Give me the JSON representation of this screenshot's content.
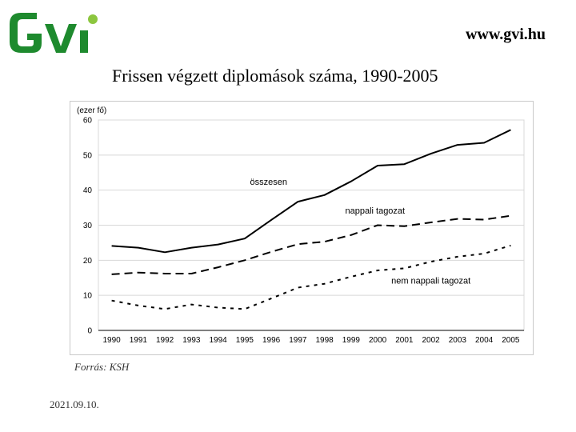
{
  "header": {
    "site_url": "www.gvi.hu",
    "logo_text": "GVI",
    "logo_colors": {
      "main": "#1e8a2e",
      "dot": "#8cc63f"
    }
  },
  "chart_data": {
    "type": "line",
    "title": "Frissen végzett diplomások száma, 1990-2005",
    "ylabel": "(ezer fő)",
    "xlabel": "",
    "x": [
      "1990",
      "1991",
      "1992",
      "1993",
      "1994",
      "1995",
      "1996",
      "1997",
      "1998",
      "1999",
      "2000",
      "2001",
      "2002",
      "2003",
      "2004",
      "2005"
    ],
    "ylim": [
      0,
      60
    ],
    "yticks": [
      0,
      10,
      20,
      30,
      40,
      50,
      60
    ],
    "grid": true,
    "series": [
      {
        "name": "összesen",
        "style": "solid",
        "values": [
          24.1,
          23.6,
          22.3,
          23.6,
          24.5,
          26.2,
          31.5,
          36.7,
          38.6,
          42.5,
          47.0,
          47.4,
          50.4,
          52.9,
          53.5,
          57.2
        ]
      },
      {
        "name": "nappali tagozat",
        "style": "dashed",
        "values": [
          16.0,
          16.5,
          16.2,
          16.2,
          18.0,
          20.0,
          22.4,
          24.6,
          25.3,
          27.2,
          30.0,
          29.7,
          30.8,
          31.8,
          31.6,
          32.7
        ]
      },
      {
        "name": "nem nappali tagozat",
        "style": "dotted",
        "values": [
          8.5,
          7.1,
          6.1,
          7.4,
          6.5,
          6.1,
          9.1,
          12.2,
          13.3,
          15.3,
          17.1,
          17.7,
          19.6,
          21.0,
          21.9,
          24.2
        ]
      }
    ],
    "line_color": "#000000"
  },
  "footer": {
    "source": "Forrás: KSH",
    "date": "2021.09.10."
  }
}
